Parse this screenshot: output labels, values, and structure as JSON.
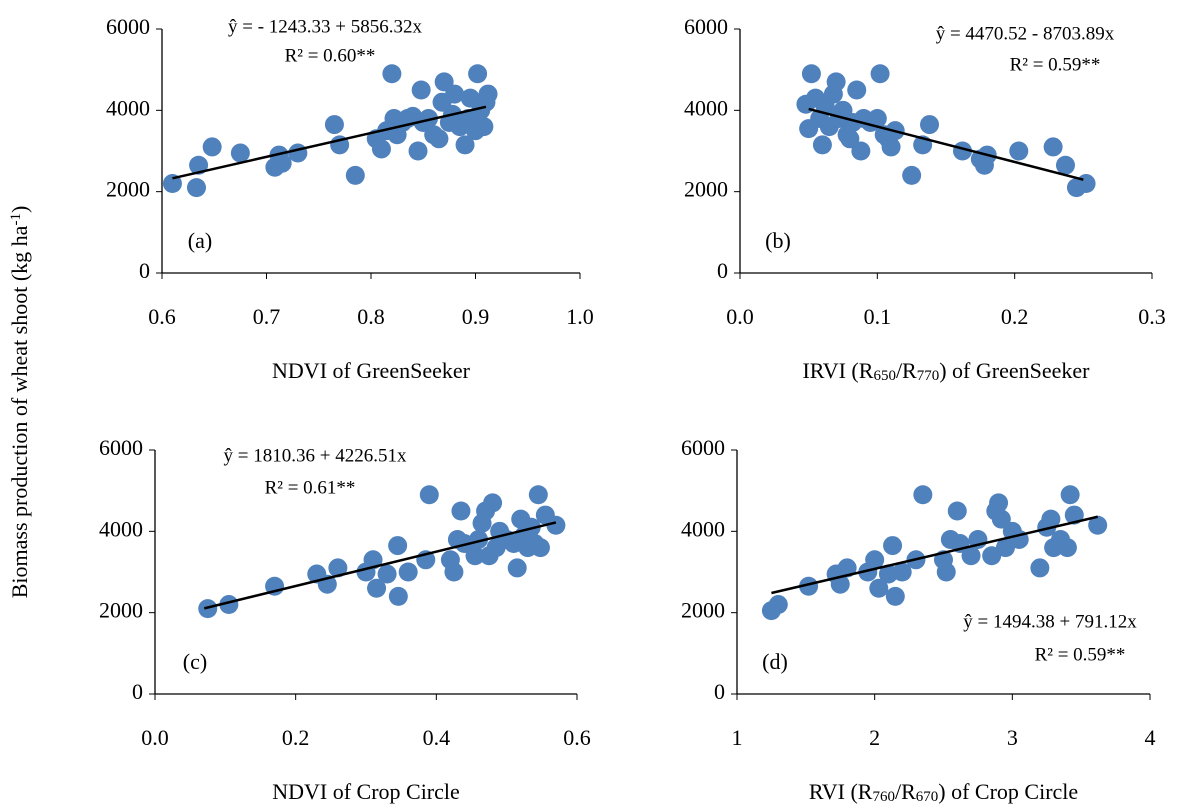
{
  "ylabel": [
    {
      "text": "Biomass production  of wheat shoot (kg ha"
    },
    {
      "text": "-1",
      "sup": true
    },
    {
      "text": ")"
    }
  ],
  "chart_data": [
    {
      "type": "scatter",
      "panel_label": "(a)",
      "equation": "ŷ = - 1243.33 + 5856.32x",
      "r2": "R² = 0.60**",
      "xlabel": [
        {
          "text": "NDVI of GreenSeeker"
        }
      ],
      "xlim": [
        0.6,
        1.0
      ],
      "xticks": [
        0.6,
        0.7,
        0.8,
        0.9,
        {
          "value": 1,
          "label": "1.0"
        }
      ],
      "ylim": [
        0,
        6000
      ],
      "yticks": [
        0,
        2000,
        4000,
        6000
      ],
      "color": "#4f81bd",
      "x": [
        0.61,
        0.633,
        0.635,
        0.648,
        0.675,
        0.708,
        0.712,
        0.715,
        0.73,
        0.765,
        0.77,
        0.785,
        0.805,
        0.81,
        0.815,
        0.82,
        0.822,
        0.825,
        0.83,
        0.835,
        0.84,
        0.845,
        0.848,
        0.85,
        0.855,
        0.86,
        0.865,
        0.868,
        0.87,
        0.875,
        0.878,
        0.88,
        0.885,
        0.89,
        0.893,
        0.895,
        0.9,
        0.902,
        0.905,
        0.908,
        0.91,
        0.912
      ],
      "values": [
        2200,
        2100,
        2650,
        3100,
        2950,
        2600,
        2900,
        2700,
        2950,
        3650,
        3150,
        2400,
        3300,
        3050,
        3500,
        4900,
        3800,
        3400,
        3700,
        3800,
        3850,
        3000,
        4500,
        3700,
        3800,
        3400,
        3300,
        4200,
        4700,
        3700,
        3900,
        4400,
        3600,
        3150,
        3800,
        4300,
        3500,
        4900,
        4000,
        3600,
        4200,
        4400
      ],
      "trendline": {
        "x": [
          0.61,
          0.91
        ],
        "values": [
          2329,
          4086
        ],
        "color": "#000000"
      }
    },
    {
      "type": "scatter",
      "panel_label": "(b)",
      "equation": "ŷ = 4470.52 - 8703.89x",
      "r2": "R² = 0.59**",
      "xlabel": [
        {
          "text": "IRVI (R"
        },
        {
          "text": "650",
          "sub": true
        },
        {
          "text": "/R"
        },
        {
          "text": "770",
          "sub": true
        },
        {
          "text": ") of GreenSeeker"
        }
      ],
      "xlim": [
        0,
        0.3
      ],
      "xticks": [
        {
          "value": 0,
          "label": "0.0"
        },
        0.1,
        0.2,
        0.3
      ],
      "ylim": [
        0,
        6000
      ],
      "yticks": [
        0,
        2000,
        4000,
        6000
      ],
      "color": "#4f81bd",
      "x": [
        0.048,
        0.05,
        0.052,
        0.055,
        0.058,
        0.06,
        0.062,
        0.065,
        0.068,
        0.07,
        0.072,
        0.075,
        0.078,
        0.08,
        0.082,
        0.085,
        0.088,
        0.09,
        0.095,
        0.1,
        0.102,
        0.105,
        0.108,
        0.11,
        0.113,
        0.125,
        0.133,
        0.138,
        0.162,
        0.175,
        0.178,
        0.18,
        0.203,
        0.228,
        0.237,
        0.245,
        0.252
      ],
      "values": [
        4150,
        3550,
        4900,
        4300,
        3800,
        3150,
        4100,
        3600,
        4400,
        4700,
        3800,
        4000,
        3400,
        3300,
        3700,
        4500,
        3000,
        3800,
        3700,
        3800,
        4900,
        3400,
        3300,
        3100,
        3500,
        2400,
        3150,
        3650,
        3000,
        2800,
        2650,
        2900,
        3000,
        3100,
        2650,
        2100,
        2200
      ],
      "trendline": {
        "x": [
          0.05,
          0.25
        ],
        "values": [
          4035,
          2295
        ],
        "color": "#000000"
      }
    },
    {
      "type": "scatter",
      "panel_label": "(c)",
      "equation": "ŷ = 1810.36 + 4226.51x",
      "r2": "R² = 0.61**",
      "xlabel": [
        {
          "text": "NDVI of Crop Circle"
        }
      ],
      "xlim": [
        0,
        0.6
      ],
      "xticks": [
        {
          "value": 0,
          "label": "0.0"
        },
        0.2,
        0.4,
        0.6
      ],
      "ylim": [
        0,
        6000
      ],
      "yticks": [
        0,
        2000,
        4000,
        6000
      ],
      "color": "#4f81bd",
      "x": [
        0.075,
        0.105,
        0.17,
        0.23,
        0.245,
        0.26,
        0.3,
        0.31,
        0.315,
        0.33,
        0.345,
        0.346,
        0.36,
        0.385,
        0.39,
        0.42,
        0.425,
        0.43,
        0.435,
        0.44,
        0.455,
        0.46,
        0.465,
        0.47,
        0.475,
        0.48,
        0.485,
        0.49,
        0.5,
        0.51,
        0.515,
        0.52,
        0.525,
        0.53,
        0.535,
        0.54,
        0.545,
        0.548,
        0.555,
        0.57
      ],
      "values": [
        2100,
        2200,
        2650,
        2950,
        2700,
        3100,
        3000,
        3300,
        2600,
        2950,
        3650,
        2400,
        3000,
        3300,
        4900,
        3300,
        3000,
        3800,
        4500,
        3700,
        3400,
        3800,
        4200,
        4500,
        3400,
        4700,
        3600,
        4000,
        3800,
        3700,
        3100,
        4300,
        3900,
        3600,
        4100,
        3700,
        4900,
        3600,
        4400,
        4150
      ],
      "trendline": {
        "x": [
          0.07,
          0.57
        ],
        "values": [
          2106,
          4219
        ],
        "color": "#000000"
      }
    },
    {
      "type": "scatter",
      "panel_label": "(d)",
      "equation": "ŷ = 1494.38 + 791.12x",
      "r2": "R² = 0.59**",
      "xlabel": [
        {
          "text": "RVI (R"
        },
        {
          "text": "760",
          "sub": true
        },
        {
          "text": "/R"
        },
        {
          "text": "670",
          "sub": true
        },
        {
          "text": ") of Crop Circle"
        }
      ],
      "xlim": [
        1,
        4
      ],
      "xticks": [
        1,
        2,
        3,
        4
      ],
      "ylim": [
        0,
        6000
      ],
      "yticks": [
        0,
        2000,
        4000,
        6000
      ],
      "color": "#4f81bd",
      "x": [
        1.25,
        1.3,
        1.52,
        1.72,
        1.75,
        1.8,
        1.95,
        2.0,
        2.03,
        2.1,
        2.13,
        2.15,
        2.2,
        2.3,
        2.35,
        2.5,
        2.52,
        2.55,
        2.6,
        2.62,
        2.7,
        2.75,
        2.85,
        2.88,
        2.9,
        2.92,
        2.95,
        3.0,
        3.05,
        3.2,
        3.25,
        3.28,
        3.3,
        3.35,
        3.4,
        3.42,
        3.45,
        3.62
      ],
      "values": [
        2050,
        2200,
        2650,
        2950,
        2700,
        3100,
        3000,
        3300,
        2600,
        2950,
        3650,
        2400,
        3000,
        3300,
        4900,
        3300,
        3000,
        3800,
        4500,
        3700,
        3400,
        3800,
        3400,
        4500,
        4700,
        4300,
        3600,
        4000,
        3800,
        3100,
        4100,
        4300,
        3600,
        3800,
        3600,
        4900,
        4400,
        4150
      ],
      "trendline": {
        "x": [
          1.25,
          3.62
        ],
        "values": [
          2483,
          4358
        ],
        "color": "#000000"
      }
    }
  ]
}
